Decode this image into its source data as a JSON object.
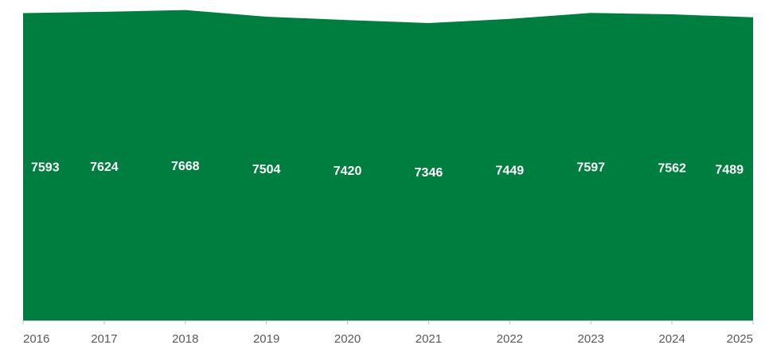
{
  "chart_data": {
    "type": "area",
    "x": [
      "2016",
      "2017",
      "2018",
      "2019",
      "2020",
      "2021",
      "2022",
      "2023",
      "2024",
      "2025"
    ],
    "series": [
      {
        "values": [
          7593,
          7624,
          7668,
          7504,
          7420,
          7346,
          7449,
          7597,
          7562,
          7489
        ],
        "labels": [
          "7593",
          "7624",
          "7668",
          "7504",
          "7420",
          "7346",
          "7449",
          "7597",
          "7562",
          "7489"
        ],
        "color": "#007E3F"
      }
    ],
    "title": "",
    "xlabel": "",
    "ylabel": "",
    "grid": false,
    "legend": "none",
    "data_labels": "inside-middle",
    "x_tick_labels": [
      "2016",
      "2017",
      "2018",
      "2019",
      "2020",
      "2021",
      "2022",
      "2023",
      "2024",
      "2025"
    ],
    "ylim": [
      0,
      7700
    ]
  }
}
